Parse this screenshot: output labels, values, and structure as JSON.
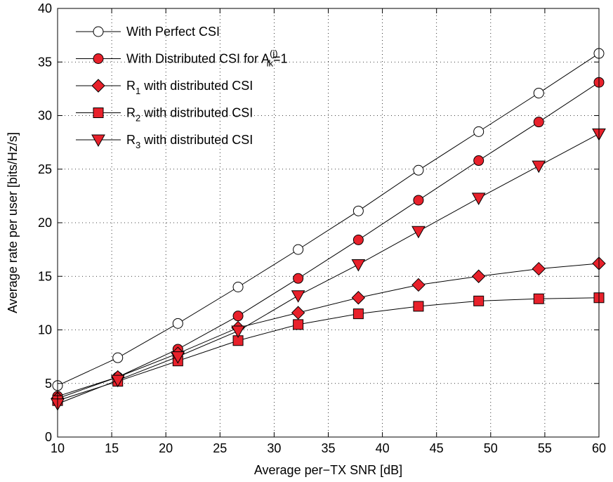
{
  "chart_data": {
    "type": "line",
    "xlabel": "Average per−TX SNR [dB]",
    "ylabel": "Average rate per user [bits/Hz/s]",
    "xlim": [
      10,
      60
    ],
    "ylim": [
      0,
      40
    ],
    "xticks": [
      "10",
      "15",
      "20",
      "25",
      "30",
      "35",
      "40",
      "45",
      "50",
      "55",
      "60"
    ],
    "yticks": [
      "0",
      "5",
      "10",
      "15",
      "20",
      "25",
      "30",
      "35",
      "40"
    ],
    "grid": true,
    "legend_position": "top-left",
    "x": [
      10,
      15.56,
      21.11,
      26.67,
      32.22,
      37.78,
      43.33,
      48.89,
      54.44,
      60
    ],
    "series": [
      {
        "name": "With Perfect CSI",
        "marker": "circle-open",
        "color": "#000000",
        "values": [
          4.8,
          7.4,
          10.6,
          14.0,
          17.5,
          21.1,
          24.9,
          28.5,
          32.1,
          35.8
        ]
      },
      {
        "name": "With Distributed CSI for A",
        "name_sup": "(j)",
        "name_sub": "ik",
        "name_suffix": "=1",
        "marker": "circle",
        "color": "#e8212b",
        "values": [
          3.8,
          5.6,
          8.2,
          11.3,
          14.8,
          18.4,
          22.1,
          25.8,
          29.4,
          33.1
        ]
      },
      {
        "name": "R",
        "name_sub": "1",
        "name_suffix": " with distributed CSI",
        "marker": "diamond",
        "color": "#e8212b",
        "values": [
          3.6,
          5.6,
          7.8,
          10.2,
          11.6,
          13.0,
          14.2,
          15.0,
          15.7,
          16.2
        ]
      },
      {
        "name": "R",
        "name_sub": "2",
        "name_suffix": " with distributed CSI",
        "marker": "square",
        "color": "#e8212b",
        "values": [
          3.4,
          5.2,
          7.1,
          9.0,
          10.5,
          11.5,
          12.2,
          12.7,
          12.9,
          13.0
        ]
      },
      {
        "name": "R",
        "name_sub": "3",
        "name_suffix": " with distributed CSI",
        "marker": "triangle-down",
        "color": "#e8212b",
        "values": [
          3.1,
          5.3,
          7.5,
          9.9,
          13.2,
          16.1,
          19.2,
          22.3,
          25.3,
          28.3
        ]
      }
    ]
  }
}
